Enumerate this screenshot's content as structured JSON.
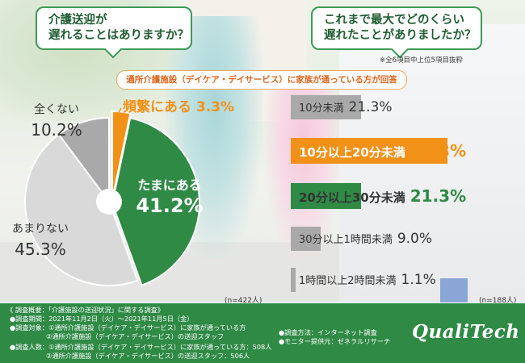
{
  "questions": {
    "q1": [
      "介護送迎が",
      "遅れることはありますか？"
    ],
    "q2": [
      "これまで最大でどのくらい",
      "遅れたことがありましたか？"
    ]
  },
  "note": "※全6項目中上位5項目抜粋",
  "banner": "通所介護施設（デイケア・デイサービス）に家族が通っている方が回答",
  "colors": {
    "green": "#2f8a46",
    "orange": "#f29118",
    "gray": "#a9a9a9",
    "lightgray": "#d9d9d9"
  },
  "chart_data": [
    {
      "type": "pie",
      "slices": [
        {
          "label": "頻繁にある",
          "value": 3.3,
          "value_text": "3.3%"
        },
        {
          "label": "たまにある",
          "value": 41.2,
          "value_text": "41.2%"
        },
        {
          "label": "あまりない",
          "value": 45.3,
          "value_text": "45.3%"
        },
        {
          "label": "全くない",
          "value": 10.2,
          "value_text": "10.2%"
        }
      ],
      "n": "(n=422人)"
    },
    {
      "type": "bar",
      "orientation": "horizontal",
      "categories": [
        "10分未満",
        "10分以上20分未満",
        "20分以上30分未満",
        "30分以上1時間未満",
        "1時間以上2時間未満"
      ],
      "values": [
        21.3,
        47.3,
        21.3,
        9.0,
        1.1
      ],
      "value_texts": [
        "21.3%",
        "47.3%",
        "21.3%",
        "9.0%",
        "1.1%"
      ],
      "n": "(n=188人)"
    }
  ],
  "footer": {
    "title": "《 調査概要：「介護施設の送迎状況」に関する調査》",
    "period": "●調査期間：2021年11月2日（火）〜2021年11月5日（金）",
    "target1": "●調査対象：①通所介護施設（デイケア・デイサービス）に家族が通っている方",
    "target2": "②通所介護施設（デイケア・デイサービス）の送迎スタッフ",
    "count1": "●調査人数：①通所介護施設（デイケア・デイサービス）に家族が通っている方：508人",
    "count2": "②通所介護施設（デイケア・デイサービス）の送迎スタッフ：506人",
    "method": "●調査方法：インターネット調査",
    "provider": "●モニター提供元：ゼネラルリサーチ",
    "logo": "QualiTech"
  }
}
